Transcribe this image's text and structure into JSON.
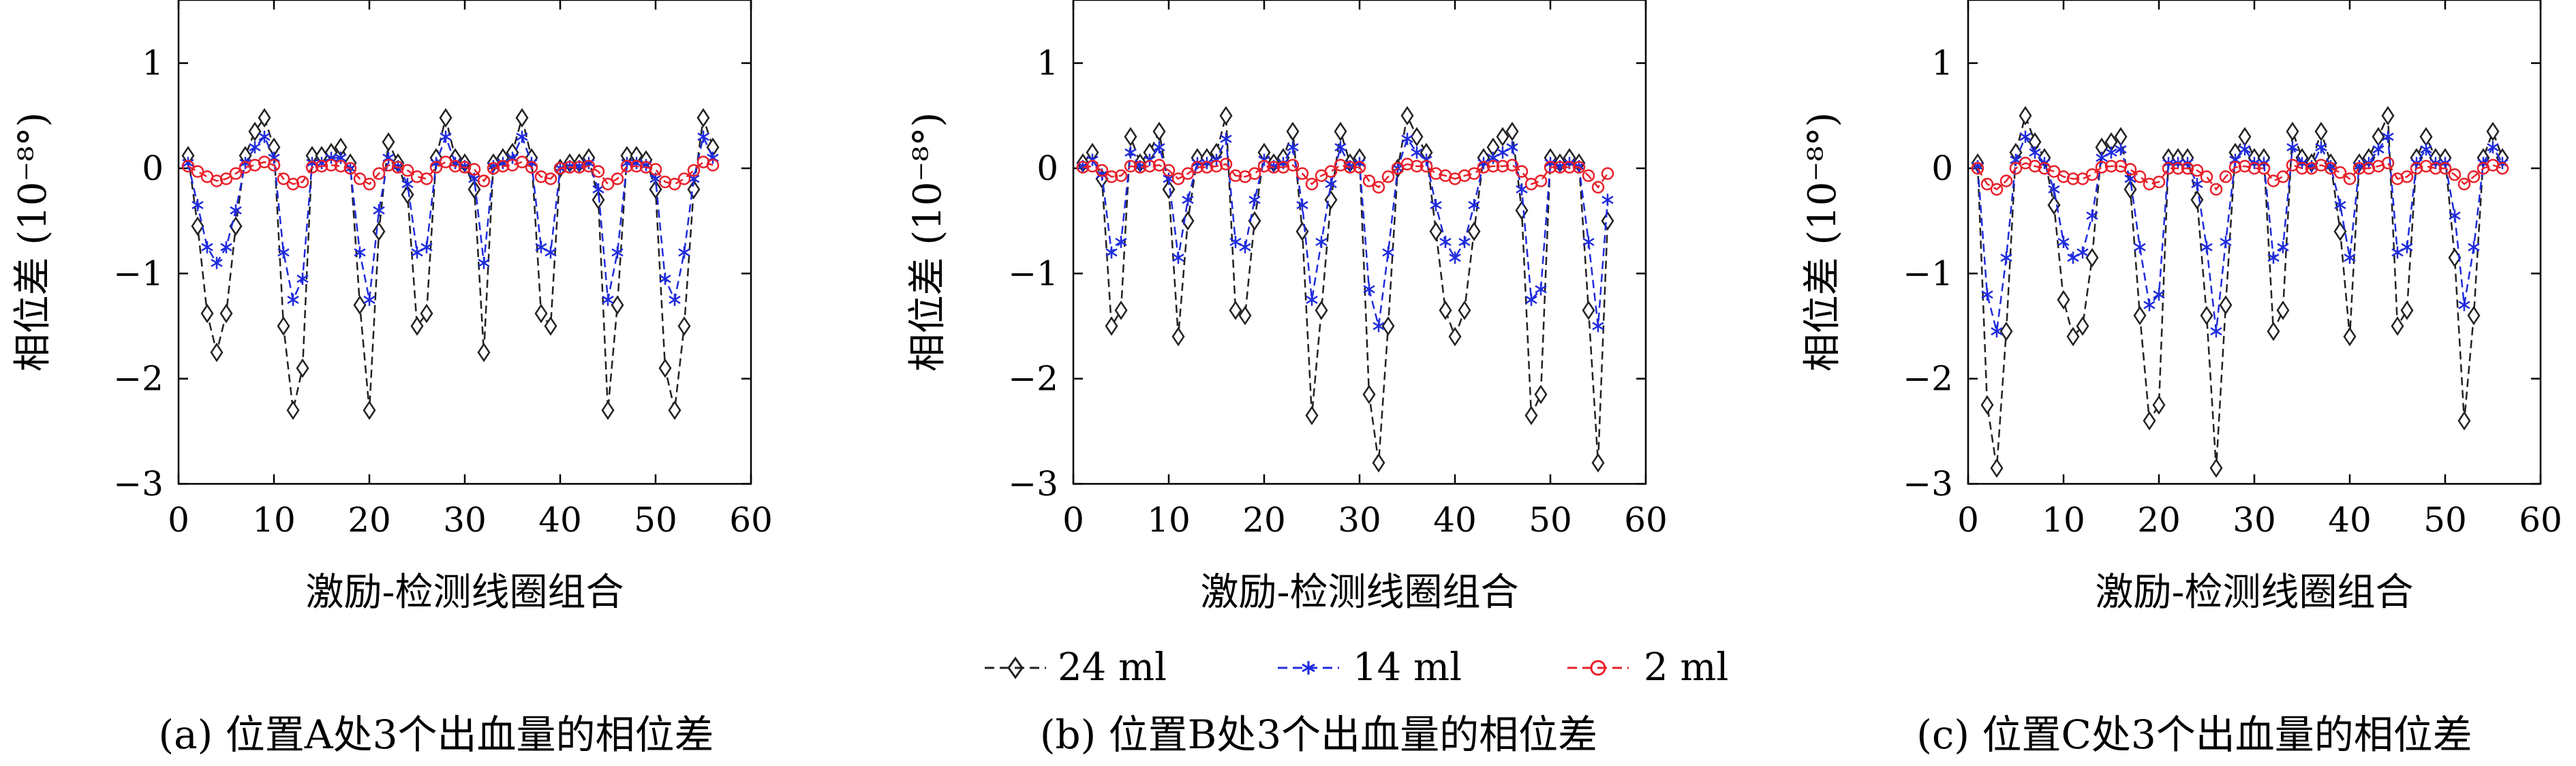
{
  "figure": {
    "captions": [
      "(a) 位置A处3个出血量的相位差",
      "(b) 位置B处3个出血量的相位差",
      "(c) 位置C处3个出血量的相位差"
    ],
    "legend": [
      "24 ml",
      "14 ml",
      "2 ml"
    ],
    "colors": {
      "s24": "#222222",
      "s14": "#1f2bdc",
      "s2": "#e8202a"
    }
  },
  "chart_data": [
    {
      "type": "line",
      "xlabel": "激励-检测线圈组合",
      "ylabel": "相位差 (10⁻⁸°)",
      "xlim": [
        0,
        60
      ],
      "ylim": [
        -3,
        1.6
      ],
      "xticks": [
        0,
        10,
        20,
        30,
        40,
        50,
        60
      ],
      "yticks": [
        1,
        0,
        -1,
        -2,
        -3
      ],
      "x": [
        1,
        2,
        3,
        4,
        5,
        6,
        7,
        8,
        9,
        10,
        11,
        12,
        13,
        14,
        15,
        16,
        17,
        18,
        19,
        20,
        21,
        22,
        23,
        24,
        25,
        26,
        27,
        28,
        29,
        30,
        31,
        32,
        33,
        34,
        35,
        36,
        37,
        38,
        39,
        40,
        41,
        42,
        43,
        44,
        45,
        46,
        47,
        48,
        49,
        50,
        51,
        52,
        53,
        54,
        55,
        56
      ],
      "series": [
        {
          "name": "24 ml",
          "values": [
            0.12,
            -0.55,
            -1.38,
            -1.75,
            -1.38,
            -0.55,
            0.12,
            0.35,
            0.48,
            0.2,
            -1.5,
            -2.3,
            -1.9,
            0.12,
            0.12,
            0.15,
            0.2,
            0.05,
            -1.3,
            -2.3,
            -0.6,
            0.25,
            0.05,
            -0.25,
            -1.5,
            -1.38,
            0.1,
            0.48,
            0.1,
            0.05,
            -0.2,
            -1.75,
            0.05,
            0.1,
            0.15,
            0.48,
            0.1,
            -1.38,
            -1.5,
            0.0,
            0.05,
            0.05,
            0.1,
            -0.3,
            -2.3,
            -1.3,
            0.12,
            0.12,
            0.08,
            -0.2,
            -1.9,
            -2.3,
            -1.5,
            -0.2,
            0.48,
            0.2
          ]
        },
        {
          "name": "14 ml",
          "values": [
            0.05,
            -0.35,
            -0.75,
            -0.9,
            -0.75,
            -0.4,
            0.05,
            0.2,
            0.3,
            0.1,
            -0.8,
            -1.25,
            -1.05,
            0.05,
            0.05,
            0.1,
            0.1,
            0.0,
            -0.8,
            -1.25,
            -0.4,
            0.1,
            0.02,
            -0.15,
            -0.8,
            -0.75,
            0.05,
            0.3,
            0.05,
            0.02,
            -0.1,
            -0.9,
            0.02,
            0.05,
            0.1,
            0.3,
            0.05,
            -0.75,
            -0.8,
            0.0,
            0.02,
            0.02,
            0.05,
            -0.2,
            -1.25,
            -0.8,
            0.05,
            0.05,
            0.03,
            -0.1,
            -1.05,
            -1.25,
            -0.8,
            -0.1,
            0.3,
            0.1
          ]
        },
        {
          "name": "2 ml",
          "values": [
            0.02,
            -0.03,
            -0.08,
            -0.12,
            -0.1,
            -0.05,
            0.01,
            0.03,
            0.06,
            0.03,
            -0.1,
            -0.15,
            -0.13,
            0.01,
            0.02,
            0.03,
            0.02,
            0.0,
            -0.1,
            -0.15,
            -0.05,
            0.03,
            0.01,
            -0.02,
            -0.08,
            -0.1,
            0.01,
            0.06,
            0.02,
            0.01,
            -0.01,
            -0.12,
            0.0,
            0.02,
            0.03,
            0.06,
            0.01,
            -0.08,
            -0.1,
            0.0,
            0.01,
            0.01,
            0.02,
            -0.03,
            -0.15,
            -0.1,
            0.02,
            0.02,
            0.01,
            -0.01,
            -0.13,
            -0.15,
            -0.1,
            -0.02,
            0.06,
            0.03
          ]
        }
      ]
    },
    {
      "type": "line",
      "xlabel": "激励-检测线圈组合",
      "ylabel": "相位差 (10⁻⁸°)",
      "xlim": [
        0,
        60
      ],
      "ylim": [
        -3,
        1.6
      ],
      "xticks": [
        0,
        10,
        20,
        30,
        40,
        50,
        60
      ],
      "yticks": [
        1,
        0,
        -1,
        -2,
        -3
      ],
      "x": [
        1,
        2,
        3,
        4,
        5,
        6,
        7,
        8,
        9,
        10,
        11,
        12,
        13,
        14,
        15,
        16,
        17,
        18,
        19,
        20,
        21,
        22,
        23,
        24,
        25,
        26,
        27,
        28,
        29,
        30,
        31,
        32,
        33,
        34,
        35,
        36,
        37,
        38,
        39,
        40,
        41,
        42,
        43,
        44,
        45,
        46,
        47,
        48,
        49,
        50,
        51,
        52,
        53,
        54,
        55,
        56
      ],
      "series": [
        {
          "name": "24 ml",
          "values": [
            0.05,
            0.15,
            -0.1,
            -1.5,
            -1.35,
            0.3,
            0.05,
            0.15,
            0.35,
            -0.2,
            -1.6,
            -0.5,
            0.1,
            0.1,
            0.15,
            0.5,
            -1.35,
            -1.4,
            -0.5,
            0.15,
            0.05,
            0.1,
            0.35,
            -0.6,
            -2.35,
            -1.35,
            -0.3,
            0.35,
            0.05,
            0.1,
            -2.15,
            -2.8,
            -1.5,
            0.0,
            0.5,
            0.3,
            0.15,
            -0.6,
            -1.35,
            -1.6,
            -1.35,
            -0.6,
            0.1,
            0.2,
            0.3,
            0.35,
            -0.4,
            -2.35,
            -2.15,
            0.1,
            0.05,
            0.1,
            0.05,
            -1.35,
            -2.8,
            -0.5
          ]
        },
        {
          "name": "14 ml",
          "values": [
            0.02,
            0.08,
            -0.06,
            -0.8,
            -0.7,
            0.15,
            0.02,
            0.08,
            0.2,
            -0.1,
            -0.85,
            -0.3,
            0.05,
            0.05,
            0.08,
            0.28,
            -0.7,
            -0.75,
            -0.3,
            0.08,
            0.02,
            0.05,
            0.2,
            -0.35,
            -1.25,
            -0.7,
            -0.15,
            0.2,
            0.02,
            0.05,
            -1.15,
            -1.5,
            -0.8,
            0.0,
            0.28,
            0.15,
            0.08,
            -0.35,
            -0.7,
            -0.85,
            -0.7,
            -0.35,
            0.05,
            0.1,
            0.15,
            0.2,
            -0.2,
            -1.25,
            -1.15,
            0.05,
            0.02,
            0.05,
            0.02,
            -0.7,
            -1.5,
            -0.3
          ]
        },
        {
          "name": "2 ml",
          "values": [
            0.01,
            0.02,
            -0.02,
            -0.08,
            -0.07,
            0.02,
            0.01,
            0.02,
            0.03,
            -0.02,
            -0.1,
            -0.05,
            0.01,
            0.01,
            0.02,
            0.04,
            -0.07,
            -0.08,
            -0.05,
            0.02,
            0.01,
            0.01,
            0.03,
            -0.05,
            -0.15,
            -0.07,
            -0.03,
            0.03,
            0.01,
            0.01,
            -0.12,
            -0.18,
            -0.08,
            0.0,
            0.04,
            0.02,
            0.02,
            -0.05,
            -0.07,
            -0.1,
            -0.07,
            -0.05,
            0.01,
            0.02,
            0.02,
            0.03,
            -0.03,
            -0.15,
            -0.12,
            0.01,
            0.01,
            0.01,
            0.01,
            -0.07,
            -0.18,
            -0.05
          ]
        }
      ]
    },
    {
      "type": "line",
      "xlabel": "激励-检测线圈组合",
      "ylabel": "相位差 (10⁻⁸°)",
      "xlim": [
        0,
        60
      ],
      "ylim": [
        -3,
        1.6
      ],
      "xticks": [
        0,
        10,
        20,
        30,
        40,
        50,
        60
      ],
      "yticks": [
        1,
        0,
        -1,
        -2,
        -3
      ],
      "x": [
        1,
        2,
        3,
        4,
        5,
        6,
        7,
        8,
        9,
        10,
        11,
        12,
        13,
        14,
        15,
        16,
        17,
        18,
        19,
        20,
        21,
        22,
        23,
        24,
        25,
        26,
        27,
        28,
        29,
        30,
        31,
        32,
        33,
        34,
        35,
        36,
        37,
        38,
        39,
        40,
        41,
        42,
        43,
        44,
        45,
        46,
        47,
        48,
        49,
        50,
        51,
        52,
        53,
        54,
        55,
        56
      ],
      "series": [
        {
          "name": "24 ml",
          "values": [
            0.05,
            -2.25,
            -2.85,
            -1.55,
            0.15,
            0.5,
            0.25,
            0.1,
            -0.35,
            -1.25,
            -1.6,
            -1.5,
            -0.85,
            0.2,
            0.25,
            0.3,
            -0.2,
            -1.4,
            -2.4,
            -2.25,
            0.1,
            0.1,
            0.1,
            -0.3,
            -1.4,
            -2.85,
            -1.3,
            0.15,
            0.3,
            0.1,
            0.1,
            -1.55,
            -1.35,
            0.35,
            0.1,
            0.05,
            0.35,
            0.05,
            -0.6,
            -1.6,
            0.05,
            0.1,
            0.3,
            0.5,
            -1.5,
            -1.35,
            0.1,
            0.3,
            0.1,
            0.1,
            -0.85,
            -2.4,
            -1.4,
            0.1,
            0.35,
            0.1
          ]
        },
        {
          "name": "14 ml",
          "values": [
            0.02,
            -1.2,
            -1.55,
            -0.85,
            0.08,
            0.3,
            0.15,
            0.05,
            -0.2,
            -0.7,
            -0.85,
            -0.8,
            -0.45,
            0.1,
            0.15,
            0.18,
            -0.1,
            -0.75,
            -1.3,
            -1.2,
            0.05,
            0.05,
            0.05,
            -0.15,
            -0.75,
            -1.55,
            -0.7,
            0.08,
            0.18,
            0.05,
            0.05,
            -0.85,
            -0.75,
            0.2,
            0.05,
            0.02,
            0.2,
            0.02,
            -0.35,
            -0.85,
            0.02,
            0.05,
            0.18,
            0.3,
            -0.8,
            -0.75,
            0.05,
            0.18,
            0.05,
            0.05,
            -0.45,
            -1.3,
            -0.75,
            0.05,
            0.2,
            0.05
          ]
        },
        {
          "name": "2 ml",
          "values": [
            0.0,
            -0.15,
            -0.2,
            -0.12,
            0.0,
            0.05,
            0.02,
            0.0,
            -0.03,
            -0.08,
            -0.1,
            -0.1,
            -0.06,
            0.01,
            0.02,
            0.02,
            -0.01,
            -0.08,
            -0.15,
            -0.13,
            0.0,
            0.0,
            0.0,
            -0.02,
            -0.08,
            -0.2,
            -0.08,
            0.01,
            0.02,
            0.0,
            0.0,
            -0.12,
            -0.08,
            0.03,
            0.0,
            0.0,
            0.03,
            0.0,
            -0.04,
            -0.1,
            0.0,
            0.0,
            0.02,
            0.05,
            -0.1,
            -0.08,
            0.0,
            0.02,
            0.0,
            0.0,
            -0.06,
            -0.15,
            -0.08,
            0.0,
            0.03,
            0.0
          ]
        }
      ]
    }
  ]
}
